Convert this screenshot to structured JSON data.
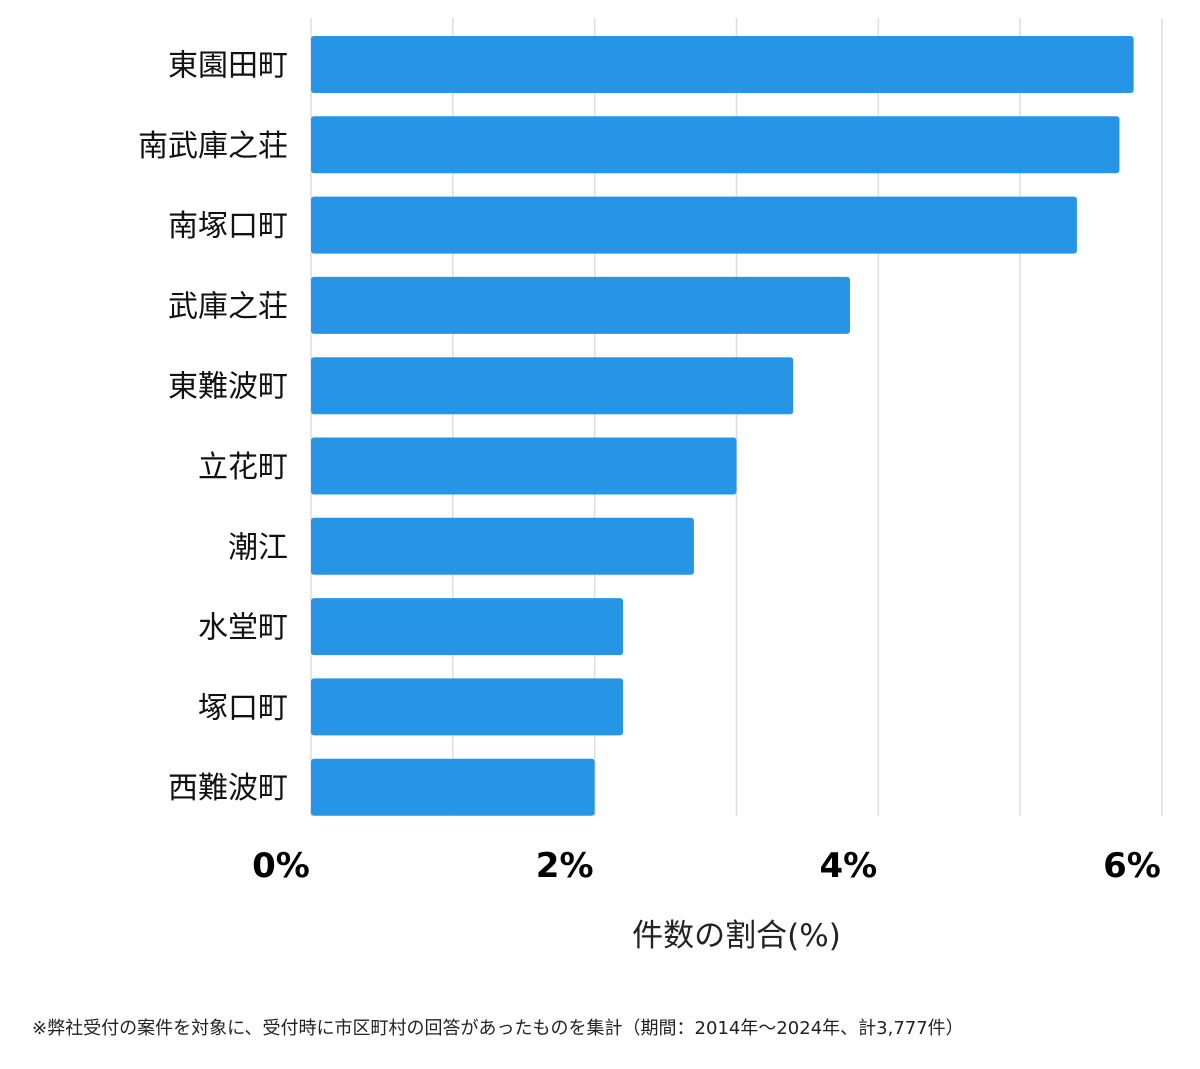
{
  "chart_data": {
    "type": "bar",
    "orientation": "horizontal",
    "categories": [
      "東園田町",
      "南武庫之荘",
      "南塚口町",
      "武庫之荘",
      "東難波町",
      "立花町",
      "潮江",
      "水堂町",
      "塚口町",
      "西難波町"
    ],
    "values": [
      5.8,
      5.7,
      5.4,
      3.8,
      3.4,
      3.0,
      2.7,
      2.2,
      2.2,
      2.0
    ],
    "xlim": [
      0,
      6
    ],
    "xticks": [
      0,
      2,
      4,
      6
    ],
    "xtick_labels": [
      "0%",
      "2%",
      "4%",
      "6%"
    ],
    "gridline_values": [
      0,
      1,
      2,
      3,
      4,
      5,
      6
    ],
    "xlabel": "件数の割合(%)",
    "bar_color": "#2795e6",
    "grid": true
  },
  "footnote": "※弊社受付の案件を対象に、受付時に市区町村の回答があったものを集計（期間：2014年〜2024年、計3,777件）"
}
